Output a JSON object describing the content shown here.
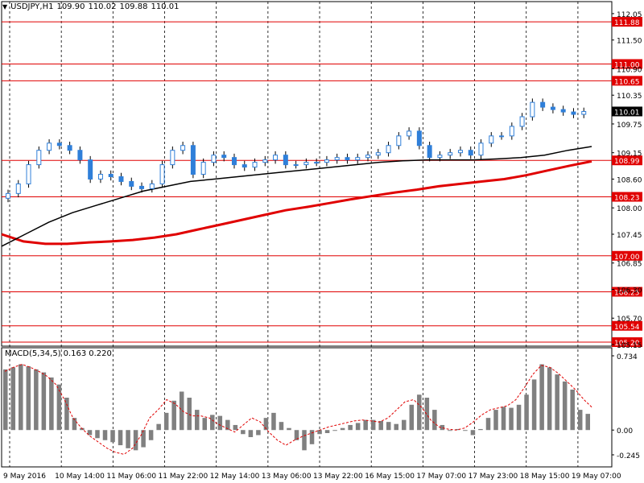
{
  "header": {
    "symbol": "USDJPY,H1",
    "open": "109.90",
    "high": "110.02",
    "low": "109.88",
    "close": "110.01"
  },
  "macd_header": {
    "name": "MACD(5,34,5)",
    "main": "0.163",
    "signal": "0.220"
  },
  "colors": {
    "candle": "#2f7fd9",
    "level_line": "#e00000",
    "ma_fast": "#000000",
    "ma_slow": "#e00000",
    "histogram": "#808080",
    "macd_signal": "#e00000",
    "price_badge": "#000000"
  },
  "chart_data": [
    {
      "type": "candlestick",
      "symbol": "USDJPY",
      "timeframe": "H1",
      "y_ticks": [
        "112.05",
        "111.50",
        "110.90",
        "110.35",
        "109.75",
        "109.15",
        "108.60",
        "108.00",
        "107.45",
        "106.85",
        "106.30",
        "105.70",
        "105.15"
      ],
      "ylim": [
        105.15,
        112.2
      ],
      "x_ticks": [
        "9 May 2016",
        "10 May 14:00",
        "11 May 06:00",
        "11 May 22:00",
        "12 May 14:00",
        "13 May 06:00",
        "13 May 22:00",
        "16 May 15:00",
        "17 May 07:00",
        "17 May 23:00",
        "18 May 15:00",
        "19 May 07:00"
      ],
      "levels": [
        111.88,
        111.0,
        110.65,
        108.99,
        108.23,
        107.0,
        106.25,
        105.54,
        105.2
      ],
      "level_labels": [
        "111.88",
        "111.00",
        "110.65",
        "108.99",
        "108.23",
        "107.00",
        "106.25",
        "105.54",
        "105.20"
      ],
      "current_price": "110.01",
      "grid": "vertical dashed",
      "close_series": [
        108.3,
        108.5,
        108.9,
        109.2,
        109.35,
        109.3,
        109.2,
        109.0,
        108.6,
        108.7,
        108.65,
        108.55,
        108.45,
        108.4,
        108.5,
        108.9,
        109.2,
        109.3,
        108.7,
        108.95,
        109.1,
        109.05,
        108.9,
        108.85,
        108.95,
        109.0,
        109.1,
        108.9,
        108.9,
        108.95,
        108.95,
        109.0,
        109.05,
        109.0,
        109.05,
        109.1,
        109.15,
        109.3,
        109.5,
        109.6,
        109.3,
        109.05,
        109.1,
        109.15,
        109.2,
        109.1,
        109.35,
        109.5,
        109.5,
        109.7,
        109.9,
        110.2,
        110.1,
        110.05,
        110.0,
        109.95,
        110.01
      ],
      "ma_fast": [
        107.2,
        107.45,
        107.7,
        107.9,
        108.05,
        108.2,
        108.35,
        108.45,
        108.55,
        108.6,
        108.65,
        108.7,
        108.75,
        108.8,
        108.85,
        108.9,
        108.95,
        108.98,
        109.0,
        109.0,
        109.0,
        109.02,
        109.05,
        109.1,
        109.2,
        109.28
      ],
      "ma_slow": [
        107.45,
        107.3,
        107.25,
        107.25,
        107.28,
        107.3,
        107.33,
        107.38,
        107.45,
        107.55,
        107.65,
        107.75,
        107.85,
        107.95,
        108.02,
        108.1,
        108.18,
        108.25,
        108.32,
        108.38,
        108.45,
        108.5,
        108.55,
        108.6,
        108.68,
        108.78,
        108.88,
        108.97
      ]
    },
    {
      "type": "bar",
      "name": "MACD(5,34,5)",
      "y_ticks": [
        "0.734",
        "0.00",
        "-0.245"
      ],
      "ylim": [
        -0.245,
        0.734
      ],
      "main": 0.163,
      "signal": 0.22,
      "histogram": [
        0.6,
        0.62,
        0.65,
        0.63,
        0.6,
        0.57,
        0.52,
        0.45,
        0.32,
        0.12,
        0.02,
        -0.05,
        -0.08,
        -0.1,
        -0.12,
        -0.15,
        -0.18,
        -0.2,
        -0.17,
        -0.1,
        0.06,
        0.17,
        0.29,
        0.38,
        0.32,
        0.2,
        0.12,
        0.15,
        0.14,
        0.1,
        0.05,
        -0.04,
        -0.07,
        -0.05,
        0.12,
        0.17,
        0.08,
        0.02,
        -0.1,
        -0.2,
        -0.14,
        -0.04,
        -0.03,
        0.0,
        0.02,
        0.05,
        0.07,
        0.1,
        0.1,
        0.09,
        0.08,
        0.06,
        0.1,
        0.25,
        0.35,
        0.32,
        0.2,
        0.05,
        0.0,
        0.01,
        0.0,
        -0.05,
        0.01,
        0.12,
        0.2,
        0.23,
        0.22,
        0.25,
        0.35,
        0.5,
        0.65,
        0.62,
        0.55,
        0.48,
        0.4,
        0.2,
        0.16
      ],
      "signal_series": [
        0.58,
        0.62,
        0.65,
        0.62,
        0.58,
        0.53,
        0.45,
        0.3,
        0.12,
        0.02,
        -0.06,
        -0.12,
        -0.18,
        -0.22,
        -0.24,
        -0.18,
        -0.05,
        0.12,
        0.2,
        0.3,
        0.26,
        0.18,
        0.14,
        0.14,
        0.12,
        0.06,
        0.02,
        -0.02,
        0.05,
        0.12,
        0.08,
        -0.02,
        -0.1,
        -0.15,
        -0.1,
        -0.06,
        -0.03,
        0.0,
        0.03,
        0.05,
        0.07,
        0.09,
        0.1,
        0.09,
        0.08,
        0.12,
        0.2,
        0.28,
        0.3,
        0.22,
        0.1,
        0.03,
        0.01,
        0.0,
        0.02,
        0.08,
        0.15,
        0.2,
        0.22,
        0.24,
        0.3,
        0.42,
        0.55,
        0.64,
        0.62,
        0.56,
        0.48,
        0.4,
        0.3,
        0.22
      ]
    }
  ]
}
